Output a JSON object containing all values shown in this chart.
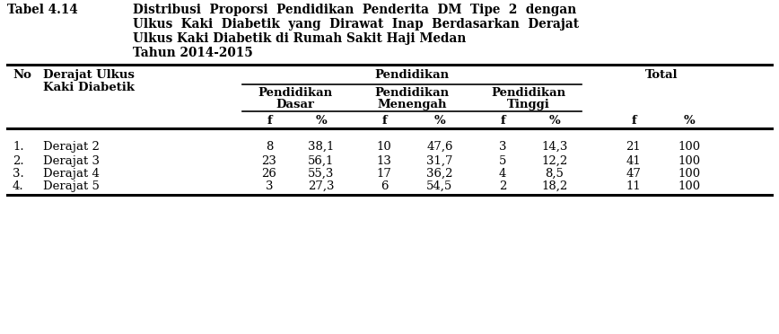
{
  "title_label": "Tabel 4.14",
  "title_text_line1": "Distribusi  Proporsi  Pendidikan  Penderita  DM  Tipe  2  dengan",
  "title_text_line2": "Ulkus  Kaki  Diabetik  yang  Dirawat  Inap  Berdasarkan  Derajat",
  "title_text_line3": "Ulkus Kaki Diabetik di Rumah Sakit Haji Medan",
  "title_text_line4": "Tahun 2014-2015",
  "rows": [
    {
      "no": "1.",
      "derajat": "Derajat 2",
      "f1": "8",
      "p1": "38,1",
      "f2": "10",
      "p2": "47,6",
      "f3": "3",
      "p3": "14,3",
      "ft": "21",
      "pt": "100"
    },
    {
      "no": "2.",
      "derajat": "Derajat 3",
      "f1": "23",
      "p1": "56,1",
      "f2": "13",
      "p2": "31,7",
      "f3": "5",
      "p3": "12,2",
      "ft": "41",
      "pt": "100"
    },
    {
      "no": "3.",
      "derajat": "Derajat 4",
      "f1": "26",
      "p1": "55,3",
      "f2": "17",
      "p2": "36,2",
      "f3": "4",
      "p3": "8,5",
      "ft": "47",
      "pt": "100"
    },
    {
      "no": "4.",
      "derajat": "Derajat 5",
      "f1": "3",
      "p1": "27,3",
      "f2": "6",
      "p2": "54,5",
      "f3": "2",
      "p3": "18,2",
      "ft": "11",
      "pt": "100"
    }
  ],
  "font_size": 9.5,
  "title_font_size": 9.8,
  "bg_color": "#ffffff",
  "text_color": "#000000"
}
